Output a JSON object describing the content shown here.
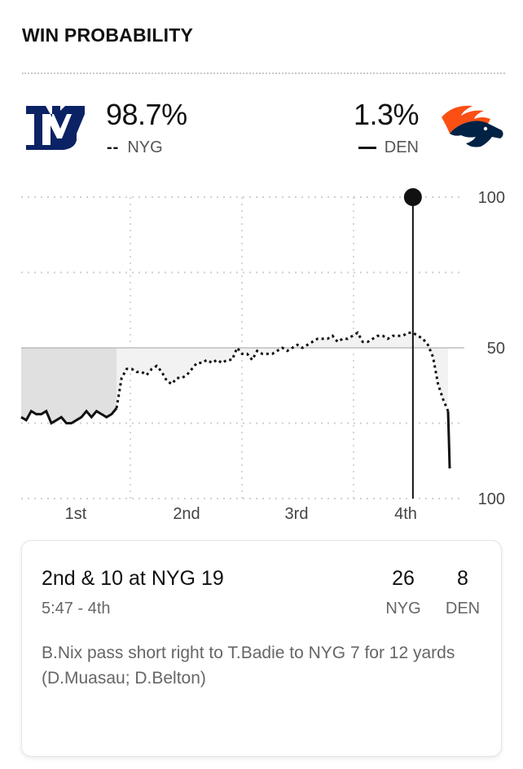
{
  "header": {
    "title": "WIN PROBABILITY"
  },
  "teams": {
    "home": {
      "abbr": "NYG",
      "pct": "98.7%",
      "legend_mark": "--",
      "logo": "giants-ny-logo",
      "color": "#0b2265"
    },
    "away": {
      "abbr": "DEN",
      "pct": "1.3%",
      "logo": "broncos-horse-logo",
      "color": "#fb4f14",
      "secondary_color": "#002244"
    }
  },
  "chart_data": {
    "type": "line",
    "title": "",
    "xlabel": "",
    "ylabel": "",
    "x_tick_labels": [
      "1st",
      "2nd",
      "3rd",
      "4th"
    ],
    "y_tick_labels": [
      "100",
      "50",
      "100"
    ],
    "y_range_note": "top = NYG 100%, middle = 50%, bottom = DEN 100%",
    "ylim": [
      0,
      100
    ],
    "grid": true,
    "current_point_index": 78,
    "series": [
      {
        "style": "dashed",
        "x": [
          0,
          1,
          2,
          3,
          4,
          5,
          6,
          7,
          8,
          9,
          10,
          11,
          12,
          13,
          14,
          15,
          16,
          17,
          18,
          19,
          20,
          21,
          22,
          23,
          24,
          25,
          26,
          27,
          28,
          29,
          30,
          31,
          32,
          33,
          34,
          35,
          36,
          37,
          38,
          39,
          40,
          41,
          42,
          43,
          44,
          45,
          46,
          47,
          48,
          49,
          50,
          51,
          52,
          53,
          54,
          55,
          56,
          57,
          58,
          59,
          60,
          61,
          62,
          63,
          64,
          65,
          66,
          67,
          68,
          69,
          70,
          71,
          72,
          73,
          74,
          75,
          76,
          77,
          78,
          79,
          80,
          81,
          82,
          83,
          84,
          85
        ],
        "values": [
          27,
          26,
          29,
          28,
          28,
          29,
          25,
          26,
          27,
          25,
          25,
          26,
          27,
          29,
          27,
          29,
          28,
          27,
          28,
          30,
          40,
          43,
          43,
          42,
          42,
          41,
          43,
          44,
          42,
          39,
          38,
          40,
          40,
          41,
          43,
          45,
          45,
          46,
          45,
          46,
          45,
          46,
          46,
          50,
          48,
          48,
          46,
          49,
          48,
          48,
          48,
          49,
          50,
          49,
          50,
          51,
          50,
          51,
          52,
          53,
          53,
          53,
          54,
          52,
          53,
          53,
          54,
          55,
          52,
          52,
          53,
          54,
          54,
          53,
          54,
          54,
          54,
          55,
          55,
          54,
          53,
          51,
          47,
          38,
          33,
          29
        ]
      }
    ],
    "lose_segment_values": [
      29,
      20,
      10
    ]
  },
  "play": {
    "situation": "2nd & 10 at NYG 19",
    "clock": "5:47 - 4th",
    "home_score": "26",
    "home_abbr": "NYG",
    "away_score": "8",
    "away_abbr": "DEN",
    "description": "B.Nix pass short right to T.Badie to NYG 7 for 12 yards (D.Muasau; D.Belton)"
  }
}
